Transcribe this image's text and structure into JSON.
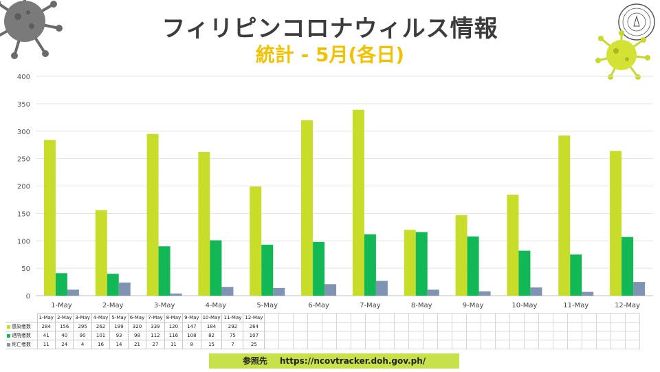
{
  "header": {
    "title": "フィリピンコロナウィルス情報",
    "subtitle": "統計 - 5月(各日)"
  },
  "colors": {
    "cases": "#c8dc2a",
    "recovered": "#12b856",
    "deaths": "#7f94b2",
    "subtitle": "#f2c200",
    "source_bar": "#c6e14a"
  },
  "icons": [
    "virus-gray-icon",
    "virus-yellow-icon",
    "seal-logo"
  ],
  "chart_data": {
    "type": "bar",
    "categories": [
      "1-May",
      "2-May",
      "3-May",
      "4-May",
      "5-May",
      "6-May",
      "7-May",
      "8-May",
      "9-May",
      "10-May",
      "11-May",
      "12-May"
    ],
    "series": [
      {
        "name": "感染者数",
        "values": [
          284,
          156,
          295,
          262,
          199,
          320,
          339,
          120,
          147,
          184,
          292,
          264
        ]
      },
      {
        "name": "退院者数",
        "values": [
          41,
          40,
          90,
          101,
          93,
          98,
          112,
          116,
          108,
          82,
          75,
          107
        ]
      },
      {
        "name": "死亡者数",
        "values": [
          11,
          24,
          4,
          16,
          14,
          21,
          27,
          11,
          8,
          15,
          7,
          25
        ]
      }
    ],
    "ylim": [
      0,
      400
    ],
    "yticks": [
      0,
      50,
      100,
      150,
      200,
      250,
      300,
      350,
      400
    ],
    "grid": true,
    "legend": "data-table"
  },
  "source": {
    "label": "参照先",
    "url": "https://ncovtracker.doh.gov.ph/"
  }
}
